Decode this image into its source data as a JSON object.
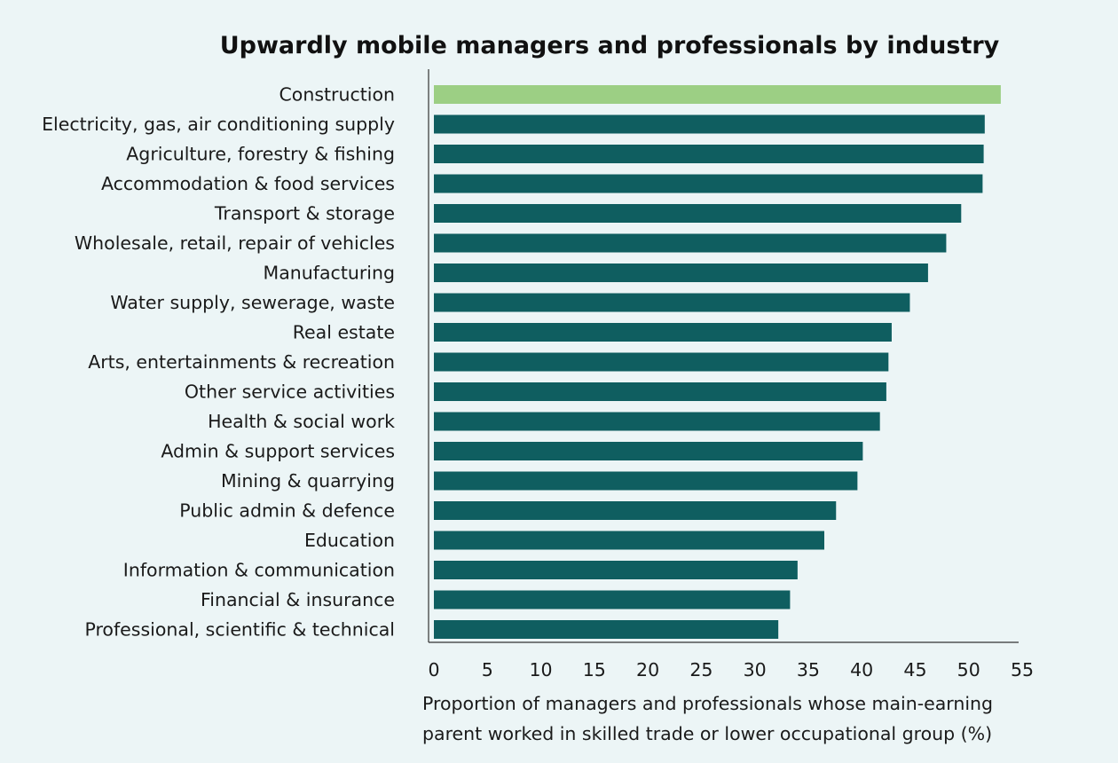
{
  "chart_data": {
    "type": "bar",
    "orientation": "horizontal",
    "title": "Upwardly mobile managers and professionals by industry",
    "xlabel_lines": [
      "Proportion of managers and professionals whose main-earning",
      "parent worked in skilled trade or lower occupational group (%)"
    ],
    "ylabel": "",
    "xlim": [
      0,
      55
    ],
    "xticks": [
      0,
      5,
      10,
      15,
      20,
      25,
      30,
      35,
      40,
      45,
      50,
      55
    ],
    "grid": false,
    "categories": [
      "Construction",
      "Electricity, gas, air conditioning supply",
      "Agriculture, forestry & fishing",
      "Accommodation & food services",
      "Transport & storage",
      "Wholesale, retail, repair of vehicles",
      "Manufacturing",
      "Water supply, sewerage, waste",
      "Real estate",
      "Arts, entertainments & recreation",
      "Other service activities",
      "Health & social work",
      "Admin & support services",
      "Mining & quarrying",
      "Public admin & defence",
      "Education",
      "Information & communication",
      "Financial & insurance",
      "Professional, scientific & technical"
    ],
    "values": [
      53.0,
      51.5,
      51.4,
      51.3,
      49.3,
      47.9,
      46.2,
      44.5,
      42.8,
      42.5,
      42.3,
      41.7,
      40.1,
      39.6,
      37.6,
      36.5,
      34.0,
      33.3,
      32.2
    ],
    "highlight_index": 0,
    "colors": {
      "highlight": "#9ccf84",
      "bar": "#0f5e60",
      "axis": "#333333"
    }
  }
}
